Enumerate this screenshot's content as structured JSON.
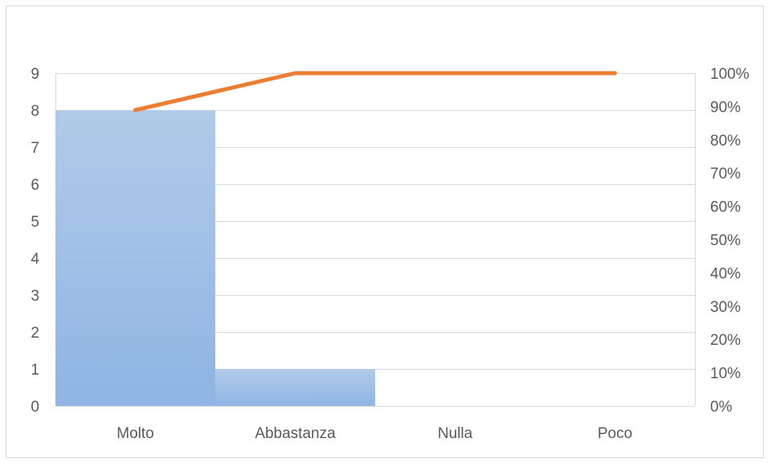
{
  "chart_data": {
    "type": "bar",
    "combo": "pareto",
    "categories": [
      "Molto",
      "Abbastanza",
      "Nulla",
      "Poco"
    ],
    "series": [
      {
        "kind": "bar",
        "axis": "left",
        "values": [
          8,
          1,
          0,
          0
        ]
      },
      {
        "kind": "line",
        "axis": "right",
        "values": [
          0.8889,
          1.0,
          1.0,
          1.0
        ]
      }
    ],
    "y_left": {
      "min": 0,
      "max": 9,
      "step": 1,
      "tick_labels": [
        "0",
        "1",
        "2",
        "3",
        "4",
        "5",
        "6",
        "7",
        "8",
        "9"
      ]
    },
    "y_right": {
      "min": 0,
      "max": 1,
      "step": 0.1,
      "tick_labels": [
        "0%",
        "10%",
        "20%",
        "30%",
        "40%",
        "50%",
        "60%",
        "70%",
        "80%",
        "90%",
        "100%"
      ]
    },
    "grid": true,
    "legend": "none",
    "colors": {
      "bar_top": "#b0cbe9",
      "bar_bottom": "#8fb4e3",
      "line": "#ed7d31",
      "grid": "#d9d9d9",
      "text": "#595959"
    }
  }
}
